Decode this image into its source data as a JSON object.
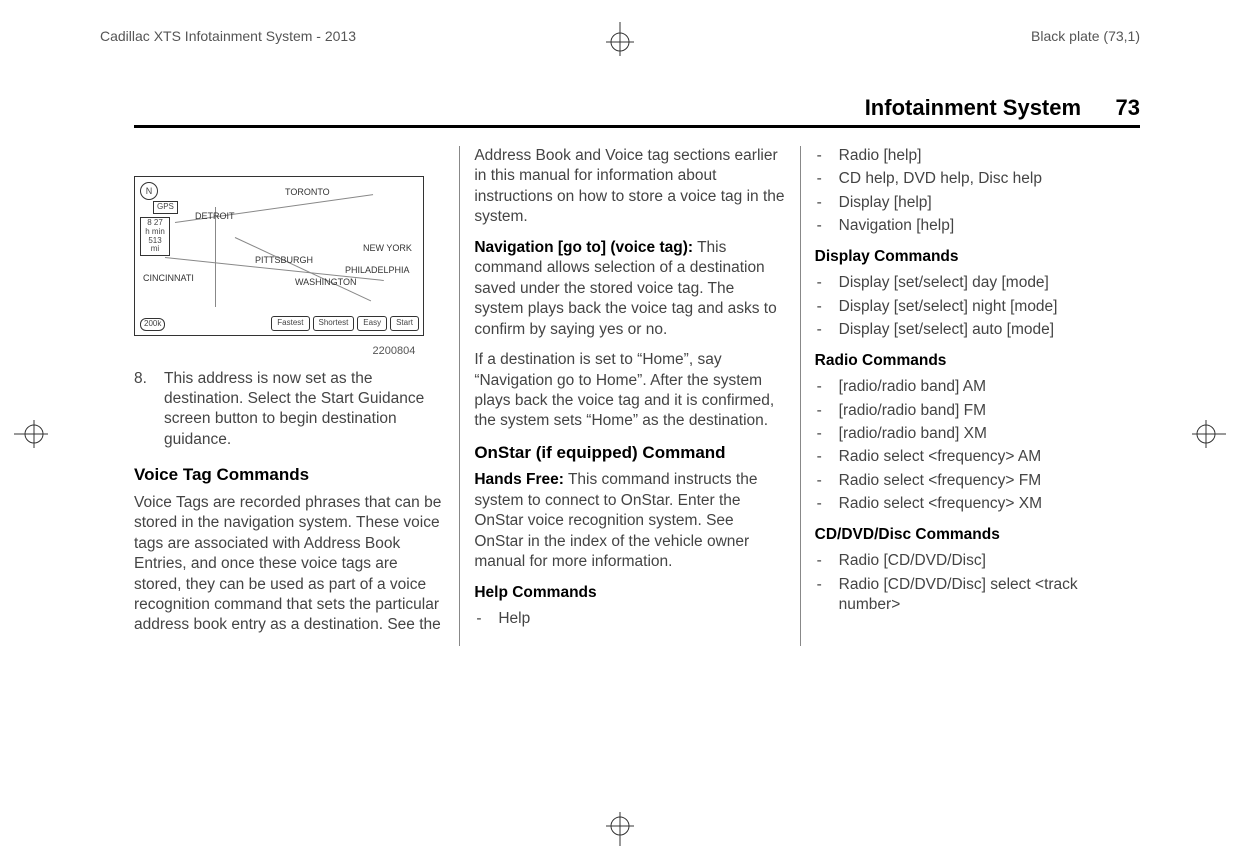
{
  "header": {
    "left": "Cadillac XTS Infotainment System - 2013",
    "right": "Black plate (73,1)"
  },
  "page": {
    "section_title": "Infotainment System",
    "page_number": "73"
  },
  "map": {
    "compass": "N",
    "gps": "GPS",
    "info_lines": [
      "8  27",
      "h  min",
      "513",
      "mi"
    ],
    "labels": {
      "toronto": "TORONTO",
      "detroit": "DETROIT",
      "pittsburgh": "PITTSBURGH",
      "cincinnati": "CINCINNATI",
      "washington": "WASHINGTON",
      "philadelphia": "PHILADELPHIA",
      "newyork": "NEW YORK"
    },
    "buttons": [
      "Fastest",
      "Shortest",
      "Easy",
      "Start"
    ],
    "scale": "200k",
    "caption": "2200804"
  },
  "col1": {
    "step_num": "8.",
    "step_text": "This address is now set as the destination. Select the Start Guidance screen button to begin destination guidance.",
    "heading": "Voice Tag Commands",
    "para": "Voice Tags are recorded phrases that can be stored in the navigation system. These voice tags are associated with Address Book Entries, and once these voice tags are stored, they can be used as part of a voice recognition command that sets the particular address book entry as a destination. See the"
  },
  "col2": {
    "intro": "Address Book and Voice tag sections earlier in this manual for information about instructions on how to store a voice tag in the system.",
    "nav_heading": "Navigation [go to] (voice tag):",
    "nav_para1": "This command allows selection of a destination saved under the stored voice tag. The system plays back the voice tag and asks to confirm by saying yes or no.",
    "nav_para2": "If a destination is set to “Home”, say “Navigation go to Home”. After the system plays back the voice tag and it is confirmed, the system sets “Home” as the destination.",
    "onstar_heading": "OnStar (if equipped) Command",
    "hands_free_label": "Hands Free:",
    "hands_free_text": "  This command instructs the system to connect to OnStar. Enter the OnStar voice recognition system. See OnStar in the index of the vehicle owner manual for more information.",
    "help_heading": "Help Commands",
    "help_item": "Help"
  },
  "col3": {
    "help_items": [
      "Radio [help]",
      "CD help, DVD help, Disc help",
      "Display [help]",
      "Navigation [help]"
    ],
    "display_heading": "Display Commands",
    "display_items": [
      "Display [set/select] day [mode]",
      "Display [set/select] night [mode]",
      "Display [set/select] auto [mode]"
    ],
    "radio_heading": "Radio Commands",
    "radio_items": [
      "[radio/radio band] AM",
      "[radio/radio band] FM",
      "[radio/radio band] XM",
      "Radio select <frequency> AM",
      "Radio select <frequency> FM",
      "Radio select <frequency> XM"
    ],
    "cd_heading": "CD/DVD/Disc Commands",
    "cd_items": [
      "Radio [CD/DVD/Disc]",
      "Radio [CD/DVD/Disc] select <track number>"
    ]
  }
}
